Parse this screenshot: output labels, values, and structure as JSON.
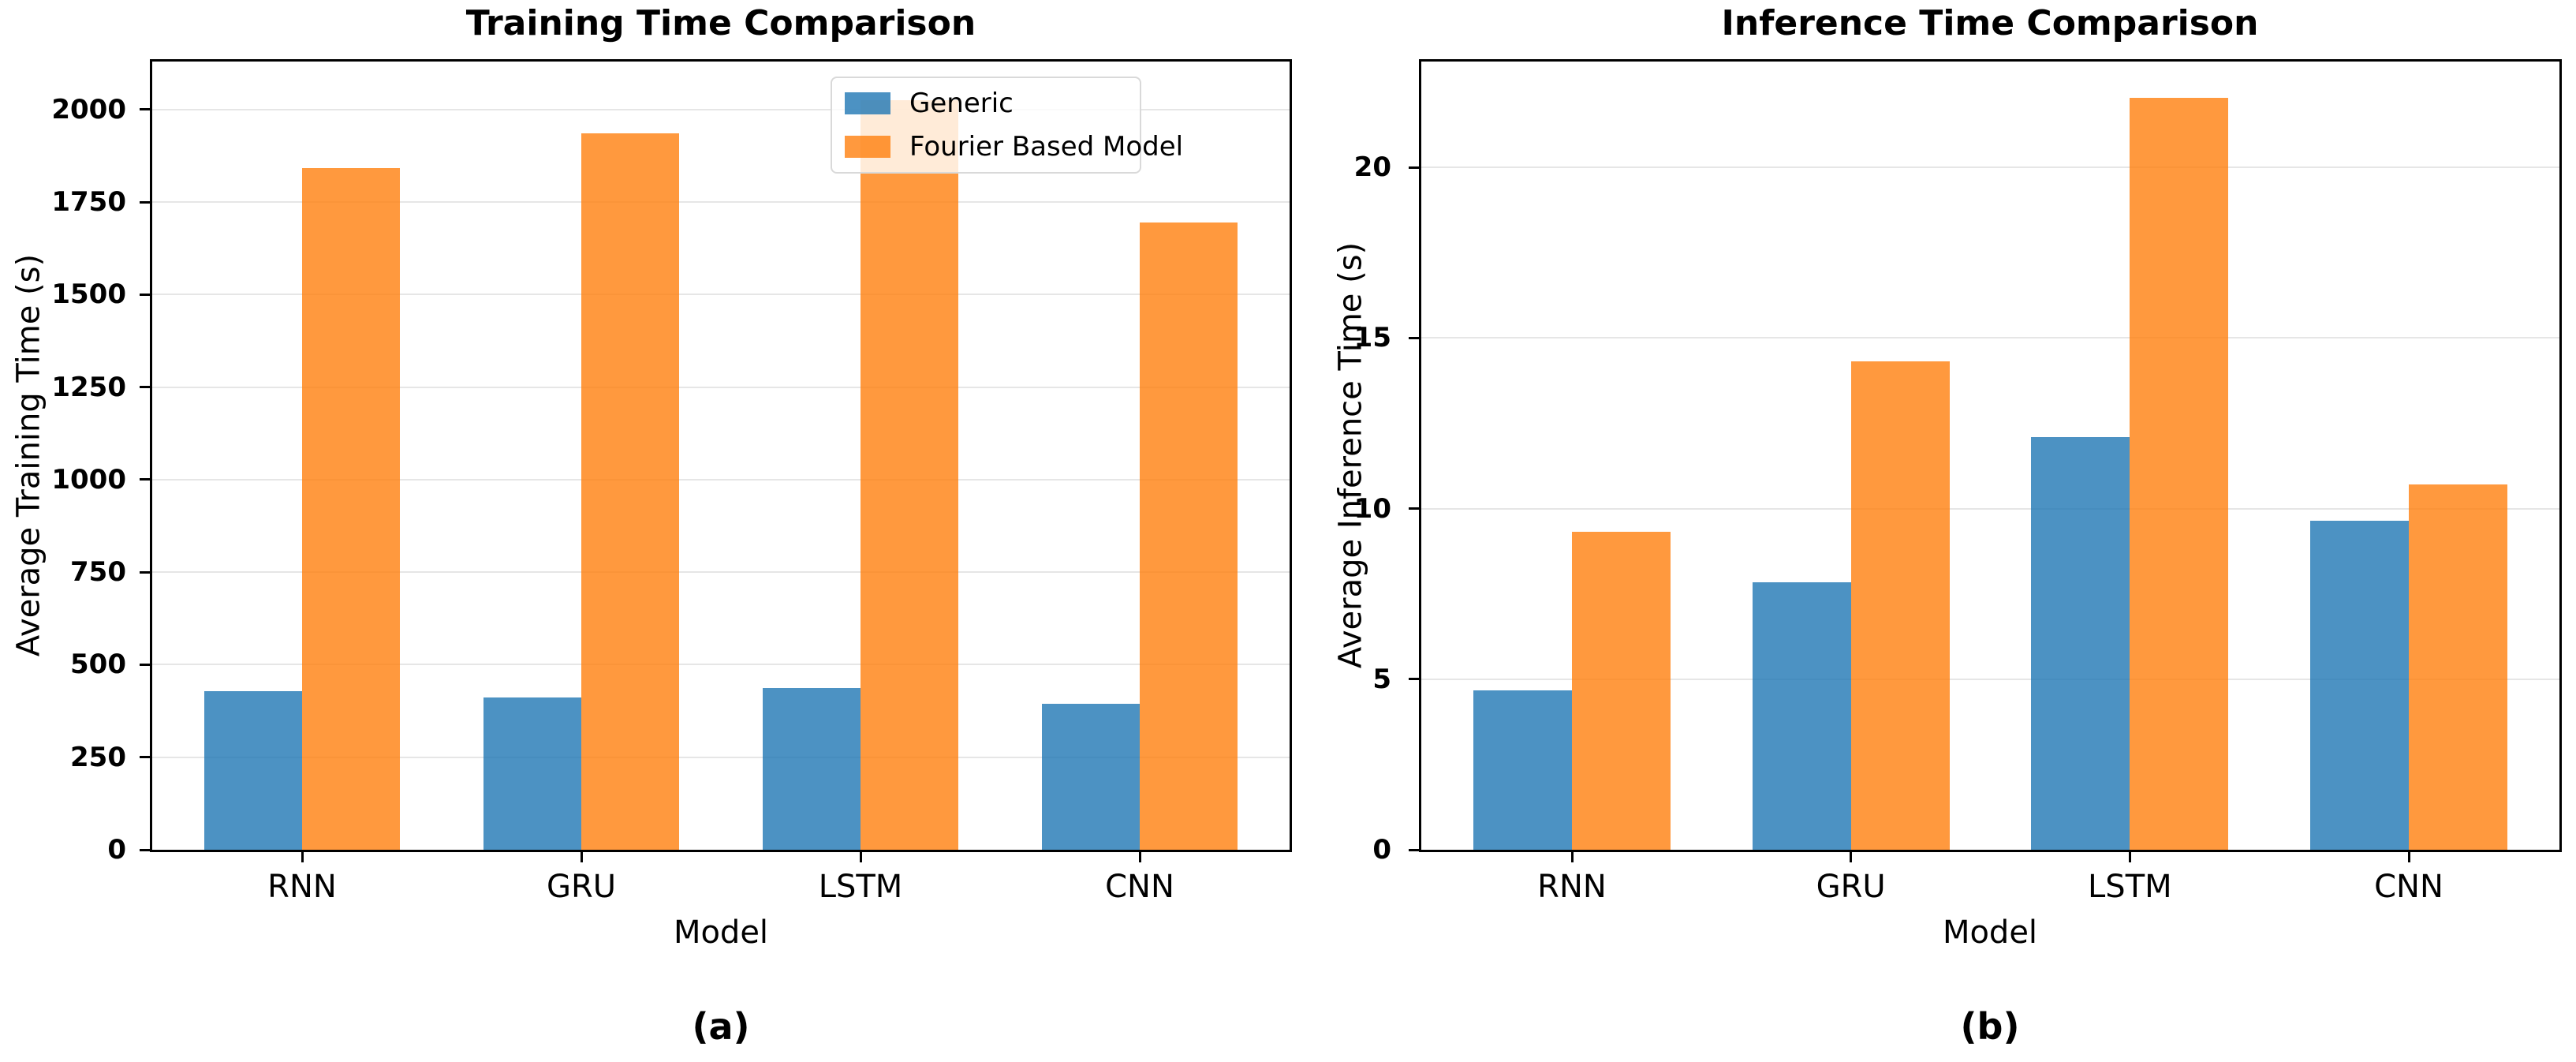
{
  "figure": {
    "background": "#ffffff"
  },
  "colors": {
    "generic": "#1f77b4",
    "fourier": "#ff7f0e",
    "bar_alpha": 0.8,
    "gridline": "#e6e6e6",
    "spine": "#000000",
    "legend_border": "#d9d9d9"
  },
  "legend": {
    "position": "upper center-right of left chart",
    "items": [
      {
        "label": "Generic",
        "color": "#1f77b4",
        "fill": "rgba(31,119,180,0.8)"
      },
      {
        "label": "Fourier Based Model",
        "color": "#ff7f0e",
        "fill": "rgba(255,127,14,0.8)"
      }
    ]
  },
  "chart_data": [
    {
      "type": "bar",
      "title": "Training Time Comparison",
      "xlabel": "Model",
      "ylabel": "Average Training Time (s)",
      "caption": "(a)",
      "categories": [
        "RNN",
        "GRU",
        "LSTM",
        "CNN"
      ],
      "series": [
        {
          "name": "Generic",
          "fill": "rgba(31,119,180,0.8)",
          "values": [
            428,
            412,
            437,
            394
          ]
        },
        {
          "name": "Fourier Based Model",
          "fill": "rgba(255,127,14,0.8)",
          "values": [
            1843,
            1937,
            2025,
            1694
          ]
        }
      ],
      "yticks": [
        0,
        250,
        500,
        750,
        1000,
        1250,
        1500,
        1750,
        2000
      ],
      "ylim": [
        0,
        2130
      ],
      "grid": "horizontal only",
      "legend_visible": true
    },
    {
      "type": "bar",
      "title": "Inference Time Comparison",
      "xlabel": "Model",
      "ylabel": "Average Inference Time (s)",
      "caption": "(b)",
      "categories": [
        "RNN",
        "GRU",
        "LSTM",
        "CNN"
      ],
      "series": [
        {
          "name": "Generic",
          "fill": "rgba(31,119,180,0.8)",
          "values": [
            4.68,
            7.84,
            12.09,
            9.65
          ]
        },
        {
          "name": "Fourier Based Model",
          "fill": "rgba(255,127,14,0.8)",
          "values": [
            9.32,
            14.31,
            22.03,
            10.71
          ]
        }
      ],
      "yticks": [
        0,
        5,
        10,
        15,
        20
      ],
      "ylim": [
        0,
        23.1
      ],
      "grid": "horizontal only",
      "legend_visible": false
    }
  ]
}
